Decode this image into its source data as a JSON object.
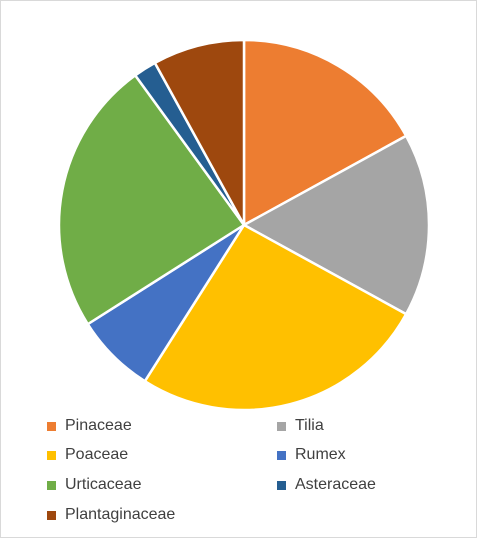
{
  "chart_data": {
    "type": "pie",
    "categories": [
      "Pinaceae",
      "Tilia",
      "Poaceae",
      "Rumex",
      "Urticaceae",
      "Asteraceae",
      "Plantaginaceae"
    ],
    "values": [
      17,
      16,
      26,
      7,
      24,
      2,
      8
    ],
    "colors": [
      "#ED7D31",
      "#A5A5A5",
      "#FFC000",
      "#4472C4",
      "#70AD47",
      "#255E91",
      "#9E480E"
    ],
    "start_angle_deg": 0,
    "direction": "clockwise",
    "slice_border_color": "#FFFFFF",
    "legend": {
      "position": "bottom",
      "columns": 2
    },
    "title": ""
  }
}
